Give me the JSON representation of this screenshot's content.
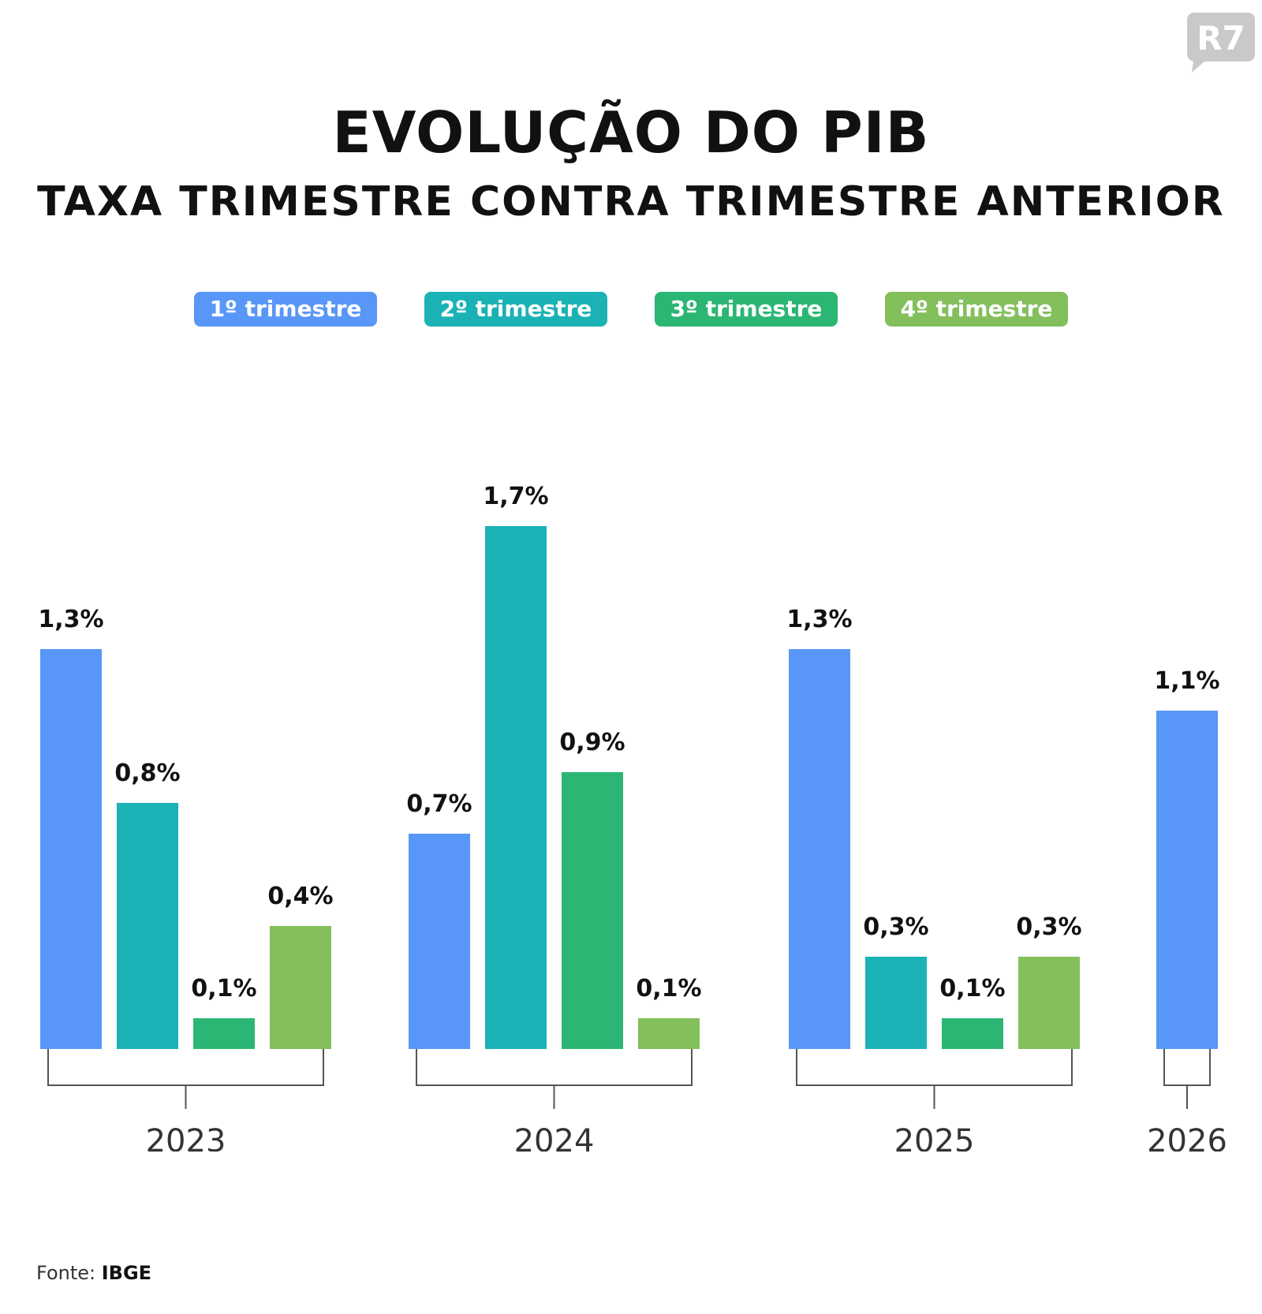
{
  "brand": {
    "logo_text": "R7",
    "logo_color": "#c9c9c9"
  },
  "title": "EVOLUÇÃO DO PIB",
  "subtitle": "TAXA TRIMESTRE CONTRA TRIMESTRE ANTERIOR",
  "source": {
    "label": "Fonte:",
    "value": "IBGE"
  },
  "chart_data": {
    "type": "bar",
    "title": "EVOLUÇÃO DO PIB",
    "subtitle": "TAXA TRIMESTRE CONTRA TRIMESTRE ANTERIOR",
    "xlabel": "",
    "ylabel": "",
    "ylim": [
      0,
      1.7
    ],
    "grid": false,
    "legend_position": "top",
    "series_meta": [
      {
        "name": "1º trimestre",
        "color": "#5897f7"
      },
      {
        "name": "2º trimestre",
        "color": "#1bb2b6"
      },
      {
        "name": "3º trimestre",
        "color": "#2bb673"
      },
      {
        "name": "4º trimestre",
        "color": "#83bf5b"
      }
    ],
    "groups": [
      {
        "year": "2023",
        "values": [
          1.3,
          0.8,
          0.1,
          0.4
        ],
        "labels": [
          "1,3%",
          "0,8%",
          "0,1%",
          "0,4%"
        ]
      },
      {
        "year": "2024",
        "values": [
          0.7,
          1.7,
          0.9,
          0.1
        ],
        "labels": [
          "0,7%",
          "1,7%",
          "0,9%",
          "0,1%"
        ]
      },
      {
        "year": "2025",
        "values": [
          1.3,
          0.3,
          0.1,
          0.3
        ],
        "labels": [
          "1,3%",
          "0,3%",
          "0,1%",
          "0,3%"
        ]
      },
      {
        "year": "2026",
        "values": [
          1.1
        ],
        "labels": [
          "1,1%"
        ]
      }
    ]
  }
}
